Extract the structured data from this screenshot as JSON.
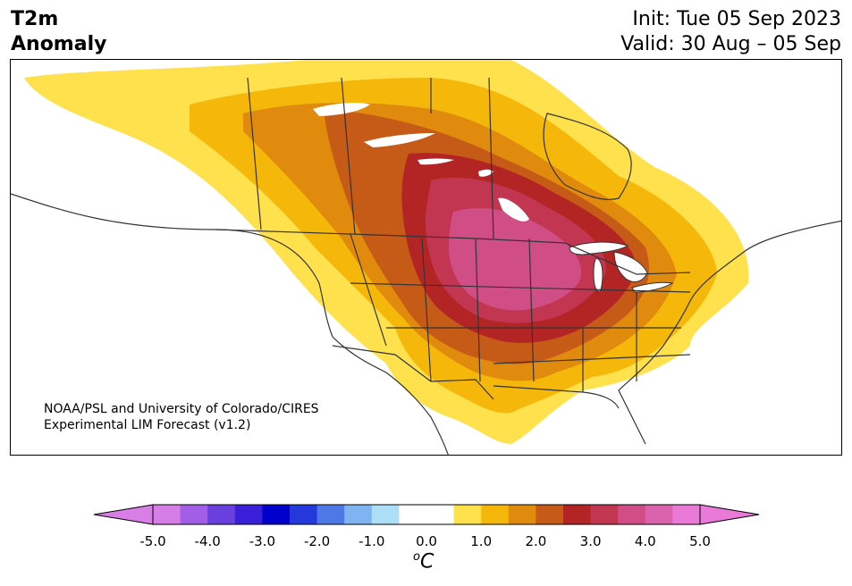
{
  "header": {
    "variable_line1": "T2m",
    "variable_line2": "Anomaly",
    "init_text": "Init: Tue 05 Sep 2023",
    "valid_text": "Valid: 30 Aug – 05 Sep"
  },
  "credit": {
    "line1": "NOAA/PSL and University of Colorado/CIRES",
    "line2": "Experimental LIM Forecast (v1.2)"
  },
  "colorbar": {
    "unit_super": "o",
    "unit_main": "C",
    "ticks": [
      "-5.0",
      "-4.0",
      "-3.0",
      "-2.0",
      "-1.0",
      "0.0",
      "1.0",
      "2.0",
      "3.0",
      "4.0",
      "5.0"
    ],
    "colors": [
      "#d67ee8",
      "#a25ee6",
      "#6a3fe0",
      "#3a1fd8",
      "#0000cd",
      "#2438db",
      "#4d78e6",
      "#7fb4f2",
      "#addef8",
      "#ffffff",
      "#ffffff",
      "#ffe14d",
      "#f5b80a",
      "#e08a0e",
      "#c65a17",
      "#b32425",
      "#c23652",
      "#d04e85",
      "#db62ad",
      "#e97ad8"
    ],
    "under_color": "#d97ee6",
    "over_color": "#e97ad8"
  },
  "map": {
    "region": "North America",
    "peak_anomaly_area": "Upper Midwest / northern Plains"
  }
}
